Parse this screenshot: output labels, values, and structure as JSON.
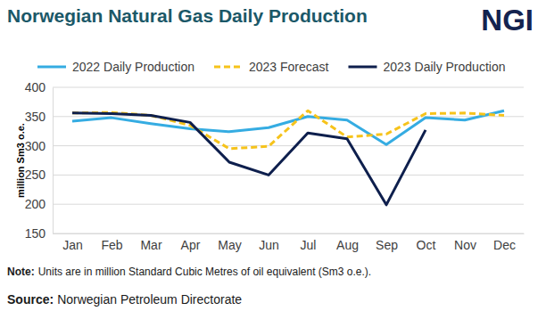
{
  "chart_data": {
    "type": "line",
    "title": "Norwegian Natural Gas Daily Production",
    "logo": "NGI",
    "y_label": "million Sm3 o.e.",
    "categories": [
      "Jan",
      "Feb",
      "Mar",
      "Apr",
      "May",
      "Jun",
      "Jul",
      "Aug",
      "Sep",
      "Oct",
      "Nov",
      "Dec"
    ],
    "series": [
      {
        "name": "2022 Daily Production",
        "color": "#35ace2",
        "line_style": "solid",
        "values": [
          342,
          348,
          338,
          329,
          324,
          331,
          350,
          344,
          302,
          348,
          344,
          360
        ]
      },
      {
        "name": "2023 Forecast",
        "color": "#f6c31b",
        "line_style": "dashed",
        "values": [
          356,
          357,
          352,
          335,
          295,
          299,
          360,
          315,
          320,
          355,
          356,
          352
        ]
      },
      {
        "name": "2023 Daily Production",
        "color": "#0e1f4d",
        "line_style": "solid",
        "values": [
          356,
          355,
          352,
          340,
          272,
          250,
          322,
          312,
          199,
          327,
          null,
          null
        ]
      }
    ],
    "ylim": [
      150,
      400
    ],
    "yticks": [
      150,
      200,
      250,
      300,
      350,
      400
    ],
    "grid": true,
    "legend": "top",
    "notes": [
      {
        "label": "Note:",
        "text": "Units are in million Standard Cubic Metres of oil equivalent (Sm3 o.e.)."
      },
      {
        "label": "Source:",
        "text": "Norwegian Petroleum Directorate"
      }
    ]
  }
}
